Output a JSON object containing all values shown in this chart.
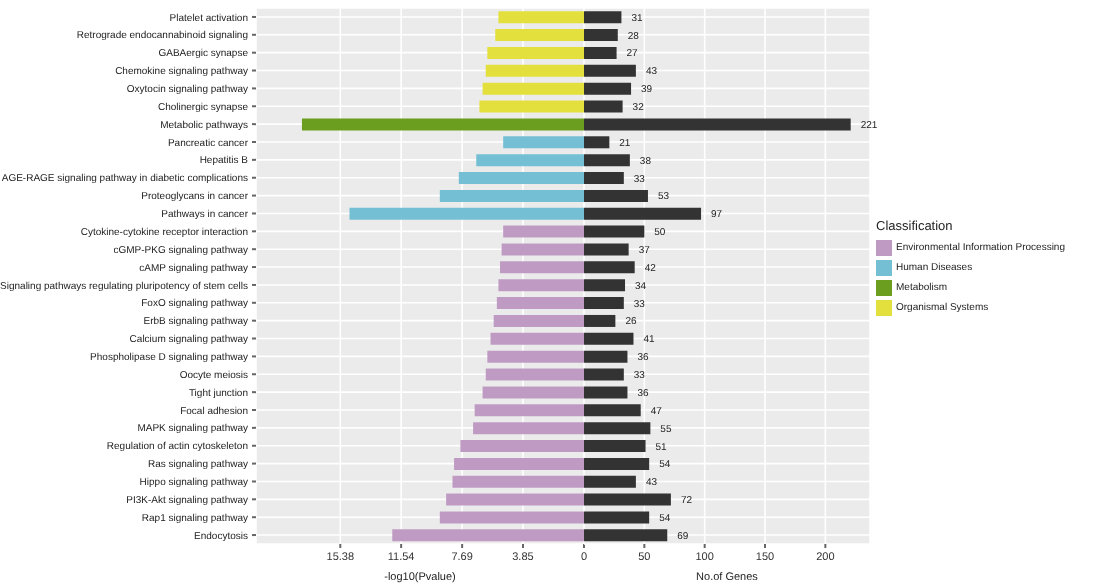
{
  "chart_data": [
    {
      "type": "bar",
      "orientation": "horizontal",
      "stacked": true,
      "xlabel": "-log10(Pvalue)",
      "legend_title": "Classification",
      "legend": "right",
      "grid": true,
      "categories": [
        "Platelet activation",
        "Retrograde endocannabinoid signaling",
        "GABAergic synapse",
        "Chemokine signaling pathway",
        "Oxytocin signaling pathway",
        "Cholinergic synapse",
        "Metabolic pathways",
        "Pancreatic cancer",
        "Hepatitis B",
        "AGE-RAGE signaling pathway in diabetic complications",
        "Proteoglycans in cancer",
        "Pathways in cancer",
        "Cytokine-cytokine receptor interaction",
        "cGMP-PKG signaling pathway",
        "cAMP signaling pathway",
        "Signaling pathways regulating pluripotency of stem cells",
        "FoxO signaling pathway",
        "ErbB signaling pathway",
        "Calcium signaling pathway",
        "Phospholipase D signaling pathway",
        "Oocyte meiosis",
        "Tight junction",
        "Focal adhesion",
        "MAPK signaling pathway",
        "Regulation of actin cytoskeleton",
        "Ras signaling pathway",
        "Hippo signaling pathway",
        "PI3K-Akt signaling pathway",
        "Rap1 signaling pathway",
        "Endocytosis"
      ],
      "series": [
        {
          "name": "Environmental Information Processing",
          "color": "#bf9bc4",
          "values": [
            null,
            null,
            null,
            null,
            null,
            null,
            null,
            null,
            null,
            null,
            null,
            null,
            5.1,
            5.2,
            5.3,
            5.4,
            5.5,
            5.7,
            5.9,
            6.1,
            6.2,
            6.4,
            6.9,
            7.0,
            7.8,
            8.2,
            8.3,
            8.7,
            9.1,
            12.1
          ]
        },
        {
          "name": "Human Diseases",
          "color": "#74bfd4",
          "values": [
            null,
            null,
            null,
            null,
            null,
            null,
            null,
            5.1,
            6.8,
            7.9,
            9.1,
            14.8,
            null,
            null,
            null,
            null,
            null,
            null,
            null,
            null,
            null,
            null,
            null,
            null,
            null,
            null,
            null,
            null,
            null,
            null
          ]
        },
        {
          "name": "Metabolism",
          "color": "#6b9e1e",
          "values": [
            null,
            null,
            null,
            null,
            null,
            null,
            17.8,
            null,
            null,
            null,
            null,
            null,
            null,
            null,
            null,
            null,
            null,
            null,
            null,
            null,
            null,
            null,
            null,
            null,
            null,
            null,
            null,
            null,
            null,
            null
          ]
        },
        {
          "name": "Organismal Systems",
          "color": "#e3df3c",
          "values": [
            5.4,
            5.6,
            6.1,
            6.2,
            6.4,
            6.6,
            null,
            null,
            null,
            null,
            null,
            null,
            null,
            null,
            null,
            null,
            null,
            null,
            null,
            null,
            null,
            null,
            null,
            null,
            null,
            null,
            null,
            null,
            null,
            null
          ]
        }
      ],
      "xlim": [
        20.7,
        0
      ],
      "xticks": [
        15.38,
        11.54,
        7.69,
        3.85,
        0
      ]
    },
    {
      "type": "bar",
      "orientation": "horizontal",
      "xlabel": "No.of Genes",
      "grid": true,
      "tick_labels": "x",
      "data_labels": true,
      "color": "#333333",
      "categories": [
        null,
        null,
        null,
        null,
        null,
        null,
        null,
        null,
        null,
        null,
        null,
        null,
        null,
        null,
        null,
        null,
        null,
        null,
        null,
        null,
        null,
        null,
        null,
        null,
        null,
        null,
        null,
        null,
        null,
        null
      ],
      "values": [
        31,
        28,
        27,
        43,
        39,
        32,
        221,
        21,
        38,
        33,
        53,
        97,
        50,
        37,
        42,
        34,
        33,
        26,
        41,
        36,
        33,
        36,
        47,
        55,
        51,
        54,
        43,
        72,
        54,
        69
      ],
      "xlim": [
        0,
        237
      ],
      "xticks": [
        50,
        100,
        150,
        200
      ]
    }
  ]
}
